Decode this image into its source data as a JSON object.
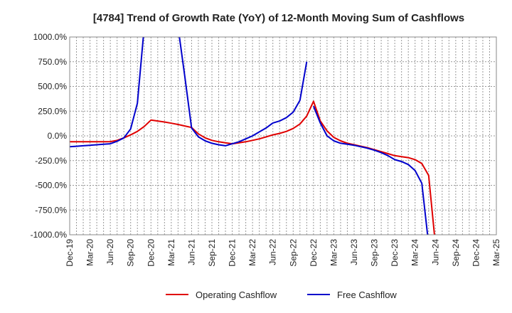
{
  "chart_data": {
    "type": "line",
    "title": "[4784]  Trend of Growth Rate (YoY) of 12-Month Moving Sum of Cashflows",
    "xlabel": "",
    "ylabel": "",
    "ylim": [
      -1000,
      1000
    ],
    "y_ticks": [
      1000,
      750,
      500,
      250,
      0,
      -250,
      -500,
      -750,
      -1000
    ],
    "y_tick_labels": [
      "1000.0%",
      "750.0%",
      "500.0%",
      "250.0%",
      "0.0%",
      "-250.0%",
      "-500.0%",
      "-750.0%",
      "-1000.0%"
    ],
    "x_tick_labels": [
      "Dec-19",
      "Mar-20",
      "Jun-20",
      "Sep-20",
      "Dec-20",
      "Mar-21",
      "Jun-21",
      "Sep-21",
      "Dec-21",
      "Mar-22",
      "Jun-22",
      "Sep-22",
      "Dec-22",
      "Mar-23",
      "Jun-23",
      "Sep-23",
      "Dec-23",
      "Mar-24",
      "Jun-24",
      "Sep-24",
      "Dec-24",
      "Mar-25"
    ],
    "x_start": "2019-12",
    "x_end": "2025-03",
    "grid": true,
    "legend_position": "bottom",
    "series": [
      {
        "name": "Operating Cashflow",
        "color": "#e00000",
        "points": [
          [
            "2019-12",
            -60
          ],
          [
            "2020-01",
            -60
          ],
          [
            "2020-02",
            -60
          ],
          [
            "2020-03",
            -60
          ],
          [
            "2020-04",
            -60
          ],
          [
            "2020-05",
            -60
          ],
          [
            "2020-06",
            -58
          ],
          [
            "2020-07",
            -45
          ],
          [
            "2020-08",
            -20
          ],
          [
            "2020-09",
            10
          ],
          [
            "2020-10",
            45
          ],
          [
            "2020-11",
            95
          ],
          [
            "2020-12",
            160
          ],
          [
            "2021-01",
            150
          ],
          [
            "2021-02",
            140
          ],
          [
            "2021-03",
            128
          ],
          [
            "2021-04",
            115
          ],
          [
            "2021-05",
            100
          ],
          [
            "2021-06",
            85
          ],
          [
            "2021-07",
            20
          ],
          [
            "2021-08",
            -20
          ],
          [
            "2021-09",
            -45
          ],
          [
            "2021-10",
            -60
          ],
          [
            "2021-11",
            -70
          ],
          [
            "2021-12",
            -80
          ],
          [
            "2022-01",
            -70
          ],
          [
            "2022-02",
            -60
          ],
          [
            "2022-03",
            -45
          ],
          [
            "2022-04",
            -30
          ],
          [
            "2022-05",
            -10
          ],
          [
            "2022-06",
            10
          ],
          [
            "2022-07",
            25
          ],
          [
            "2022-08",
            45
          ],
          [
            "2022-09",
            75
          ],
          [
            "2022-10",
            120
          ],
          [
            "2022-11",
            200
          ],
          [
            "2022-12",
            350
          ],
          [
            "2023-01",
            150
          ],
          [
            "2023-02",
            50
          ],
          [
            "2023-03",
            -15
          ],
          [
            "2023-04",
            -50
          ],
          [
            "2023-05",
            -75
          ],
          [
            "2023-06",
            -90
          ],
          [
            "2023-07",
            -105
          ],
          [
            "2023-08",
            -120
          ],
          [
            "2023-09",
            -140
          ],
          [
            "2023-10",
            -160
          ],
          [
            "2023-11",
            -180
          ],
          [
            "2023-12",
            -200
          ],
          [
            "2024-01",
            -210
          ],
          [
            "2024-02",
            -220
          ],
          [
            "2024-03",
            -240
          ],
          [
            "2024-04",
            -280
          ],
          [
            "2024-05",
            -400
          ],
          [
            "2024-06",
            -1100
          ]
        ]
      },
      {
        "name": "Free Cashflow",
        "color": "#0000cc",
        "points": [
          [
            "2019-12",
            -110
          ],
          [
            "2020-01",
            -105
          ],
          [
            "2020-02",
            -100
          ],
          [
            "2020-03",
            -95
          ],
          [
            "2020-04",
            -90
          ],
          [
            "2020-05",
            -85
          ],
          [
            "2020-06",
            -80
          ],
          [
            "2020-07",
            -55
          ],
          [
            "2020-08",
            -20
          ],
          [
            "2020-09",
            70
          ],
          [
            "2020-10",
            330
          ],
          [
            "2020-11",
            1100
          ],
          [
            "2021-04",
            1100
          ],
          [
            "2021-05",
            600
          ],
          [
            "2021-06",
            80
          ],
          [
            "2021-07",
            -10
          ],
          [
            "2021-08",
            -50
          ],
          [
            "2021-09",
            -75
          ],
          [
            "2021-10",
            -90
          ],
          [
            "2021-11",
            -100
          ],
          [
            "2021-12",
            -80
          ],
          [
            "2022-01",
            -60
          ],
          [
            "2022-02",
            -30
          ],
          [
            "2022-03",
            0
          ],
          [
            "2022-04",
            40
          ],
          [
            "2022-05",
            80
          ],
          [
            "2022-06",
            130
          ],
          [
            "2022-07",
            150
          ],
          [
            "2022-08",
            185
          ],
          [
            "2022-09",
            240
          ],
          [
            "2022-10",
            360
          ],
          [
            "2022-11",
            750
          ]
        ],
        "points_after_gap": [
          [
            "2022-12",
            300
          ],
          [
            "2023-01",
            130
          ],
          [
            "2023-02",
            0
          ],
          [
            "2023-03",
            -50
          ],
          [
            "2023-04",
            -75
          ],
          [
            "2023-05",
            -85
          ],
          [
            "2023-06",
            -95
          ],
          [
            "2023-07",
            -110
          ],
          [
            "2023-08",
            -125
          ],
          [
            "2023-09",
            -145
          ],
          [
            "2023-10",
            -170
          ],
          [
            "2023-11",
            -200
          ],
          [
            "2023-12",
            -240
          ],
          [
            "2024-01",
            -260
          ],
          [
            "2024-02",
            -290
          ],
          [
            "2024-03",
            -350
          ],
          [
            "2024-04",
            -480
          ],
          [
            "2024-05",
            -1100
          ]
        ]
      }
    ]
  }
}
